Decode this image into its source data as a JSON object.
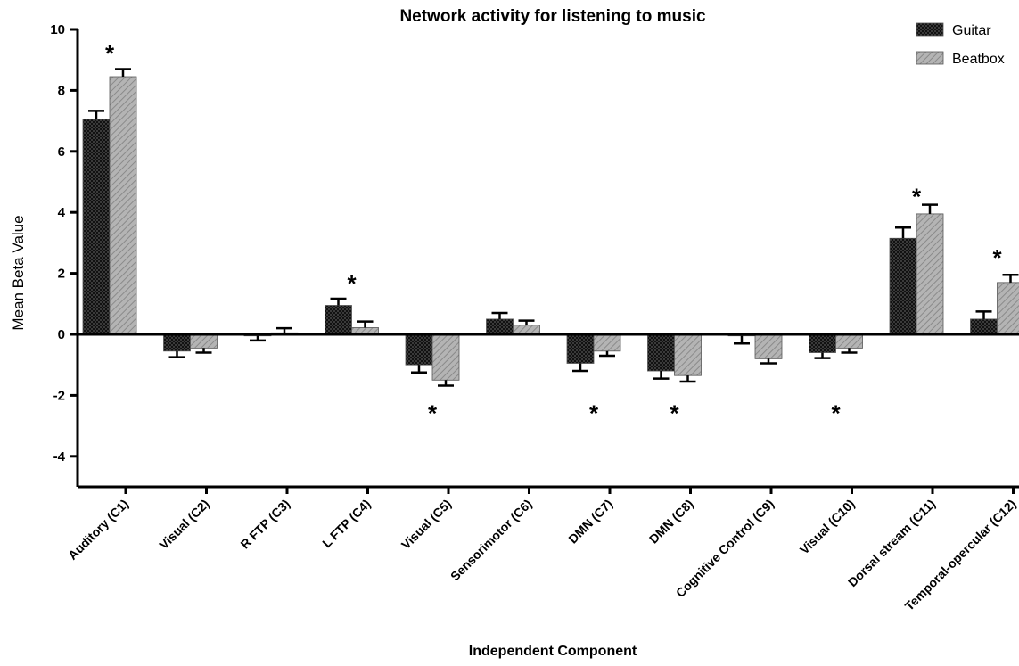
{
  "chart_data": {
    "type": "bar",
    "title": "Network activity for listening to music",
    "xlabel": "Independent Component",
    "ylabel": "Mean Beta Value",
    "ylim": [
      -5,
      10
    ],
    "yticks": [
      10,
      8,
      6,
      4,
      2,
      0,
      -2,
      -4
    ],
    "legend_position": "top-right",
    "categories": [
      "Auditory (C1)",
      "Visual (C2)",
      "R FTP (C3)",
      "L FTP (C4)",
      "Visual (C5)",
      "Sensorimotor (C6)",
      "DMN (C7)",
      "DMN (C8)",
      "Cognitive Control (C9)",
      "Visual (C10)",
      "Dorsal stream (C11)",
      "Temporal-opercular (C12)"
    ],
    "series": [
      {
        "name": "Guitar",
        "color": "#2a2a2a",
        "pattern": "checker",
        "values": [
          7.05,
          -0.55,
          -0.05,
          0.95,
          -1.0,
          0.5,
          -0.95,
          -1.2,
          -0.05,
          -0.6,
          3.15,
          0.5
        ],
        "errors": [
          0.28,
          0.2,
          0.15,
          0.22,
          0.25,
          0.2,
          0.25,
          0.25,
          0.25,
          0.18,
          0.35,
          0.25
        ]
      },
      {
        "name": "Beatbox",
        "color": "#a8a8a8",
        "pattern": "diagonal",
        "values": [
          8.45,
          -0.45,
          0.05,
          0.22,
          -1.5,
          0.3,
          -0.55,
          -1.35,
          -0.8,
          -0.45,
          3.95,
          1.7
        ],
        "errors": [
          0.25,
          0.15,
          0.15,
          0.2,
          0.18,
          0.15,
          0.15,
          0.2,
          0.15,
          0.15,
          0.3,
          0.25
        ]
      }
    ],
    "significance": [
      {
        "category": "Auditory (C1)",
        "label": "*",
        "y": 9.3
      },
      {
        "category": "L FTP (C4)",
        "label": "*",
        "y": 1.75
      },
      {
        "category": "Visual (C5)",
        "label": "*",
        "y": -2.5
      },
      {
        "category": "DMN (C7)",
        "label": "*",
        "y": -2.5
      },
      {
        "category": "DMN (C8)",
        "label": "*",
        "y": -2.5
      },
      {
        "category": "Visual (C10)",
        "label": "*",
        "y": -2.5
      },
      {
        "category": "Dorsal stream (C11)",
        "label": "*",
        "y": 4.6
      },
      {
        "category": "Temporal-opercular (C12)",
        "label": "*",
        "y": 2.6
      }
    ]
  }
}
